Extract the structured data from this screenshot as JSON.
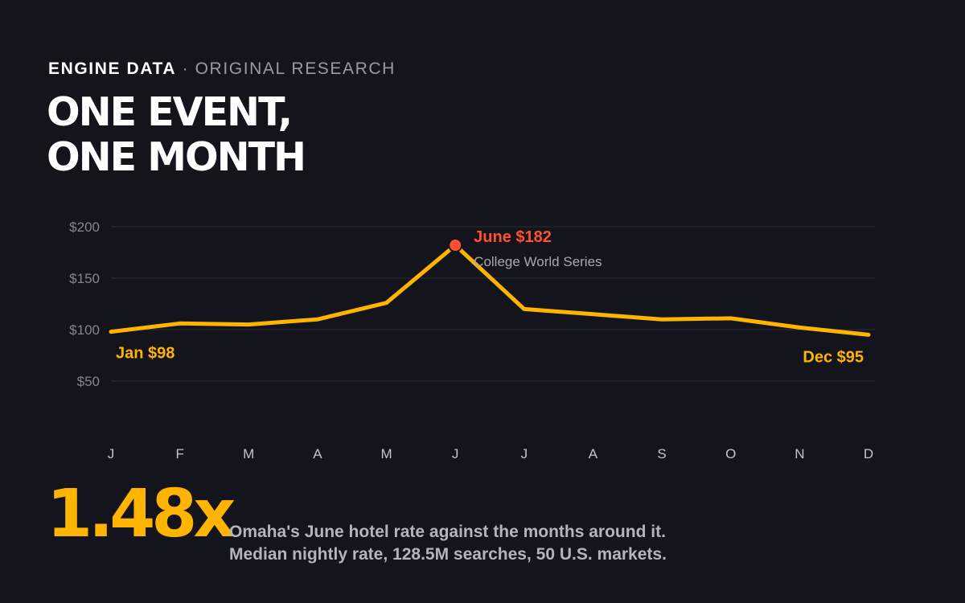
{
  "header": {
    "brand": "ENGINE DATA",
    "separator": " · ",
    "subtitle": "ORIGINAL RESEARCH",
    "title_line1": "ONE EVENT,",
    "title_line2": "ONE MONTH"
  },
  "chart_data": {
    "type": "line",
    "categories": [
      "J",
      "F",
      "M",
      "A",
      "M",
      "J",
      "J",
      "A",
      "S",
      "O",
      "N",
      "D"
    ],
    "series": [
      {
        "values": [
          98,
          106,
          105,
          110,
          126,
          182,
          120,
          115,
          110,
          111,
          102,
          95
        ],
        "color": "#ffb400"
      }
    ],
    "ylim": [
      0,
      200
    ],
    "yticks": [
      50,
      100,
      150,
      200
    ],
    "ytick_labels": [
      "$50",
      "$100",
      "$150",
      "$200"
    ],
    "grid": true,
    "highlight": {
      "index": 5,
      "color": "#ff5030"
    },
    "annotations": [
      {
        "index": 0,
        "text": "Jan $98",
        "color": "#ffb400"
      },
      {
        "index": 5,
        "text": "June $182",
        "note": "College World Series",
        "color": "#ff5030"
      },
      {
        "index": 11,
        "text": "Dec $95",
        "color": "#ffb400"
      }
    ]
  },
  "footer": {
    "big_number": "1.48x",
    "line1": "Omaha's June hotel rate against the months around it.",
    "line2": "Median nightly rate, 128.5M searches, 50 U.S. markets."
  },
  "colors": {
    "background": "#14141c",
    "accent": "#ffb400",
    "highlight": "#ff5030",
    "grid": "#2e2e38",
    "axis_text": "#85858f"
  }
}
